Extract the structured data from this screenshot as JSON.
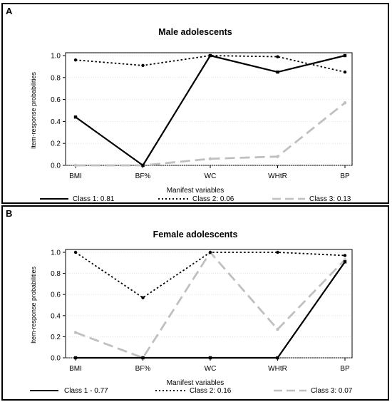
{
  "chart_data": [
    {
      "type": "line",
      "panel_label": "A",
      "title": "Male adolescents",
      "xlabel": "Manifest variables",
      "ylabel": "Item-response probabilities",
      "categories": [
        "BMI",
        "BF%",
        "WC",
        "WHtR",
        "BP"
      ],
      "yticks": [
        "0.0",
        "0.2",
        "0.4",
        "0.6",
        "0.8",
        "1.0"
      ],
      "ylim": [
        0,
        1
      ],
      "series": [
        {
          "name": "Class 1: 0.81",
          "style": "solid",
          "color": "#000000",
          "values": [
            0.44,
            0.0,
            1.0,
            0.85,
            1.0
          ]
        },
        {
          "name": "Class 2: 0.06",
          "style": "dotted",
          "color": "#000000",
          "values": [
            0.96,
            0.91,
            1.0,
            0.99,
            0.85
          ]
        },
        {
          "name": "Class 3: 0.13",
          "style": "dashed",
          "color": "#c0c0c0",
          "values": [
            0.0,
            0.0,
            0.06,
            0.08,
            0.57
          ]
        }
      ]
    },
    {
      "type": "line",
      "panel_label": "B",
      "title": "Female adolescents",
      "xlabel": "Manifest variables",
      "ylabel": "Item-response probabilities",
      "categories": [
        "BMI",
        "BF%",
        "WC",
        "WHtR",
        "BP"
      ],
      "yticks": [
        "0.0",
        "0.2",
        "0.4",
        "0.6",
        "0.8",
        "1.0"
      ],
      "ylim": [
        0,
        1
      ],
      "series": [
        {
          "name": "Class 1 - 0.77",
          "style": "solid",
          "color": "#000000",
          "values": [
            0.0,
            0.0,
            0.0,
            0.0,
            0.91
          ]
        },
        {
          "name": "Class 2: 0.16",
          "style": "dotted",
          "color": "#000000",
          "values": [
            1.0,
            0.57,
            1.0,
            1.0,
            0.97
          ]
        },
        {
          "name": "Class 3: 0.07",
          "style": "dashed",
          "color": "#c0c0c0",
          "values": [
            0.24,
            0.0,
            1.0,
            0.27,
            0.93
          ]
        }
      ]
    }
  ]
}
